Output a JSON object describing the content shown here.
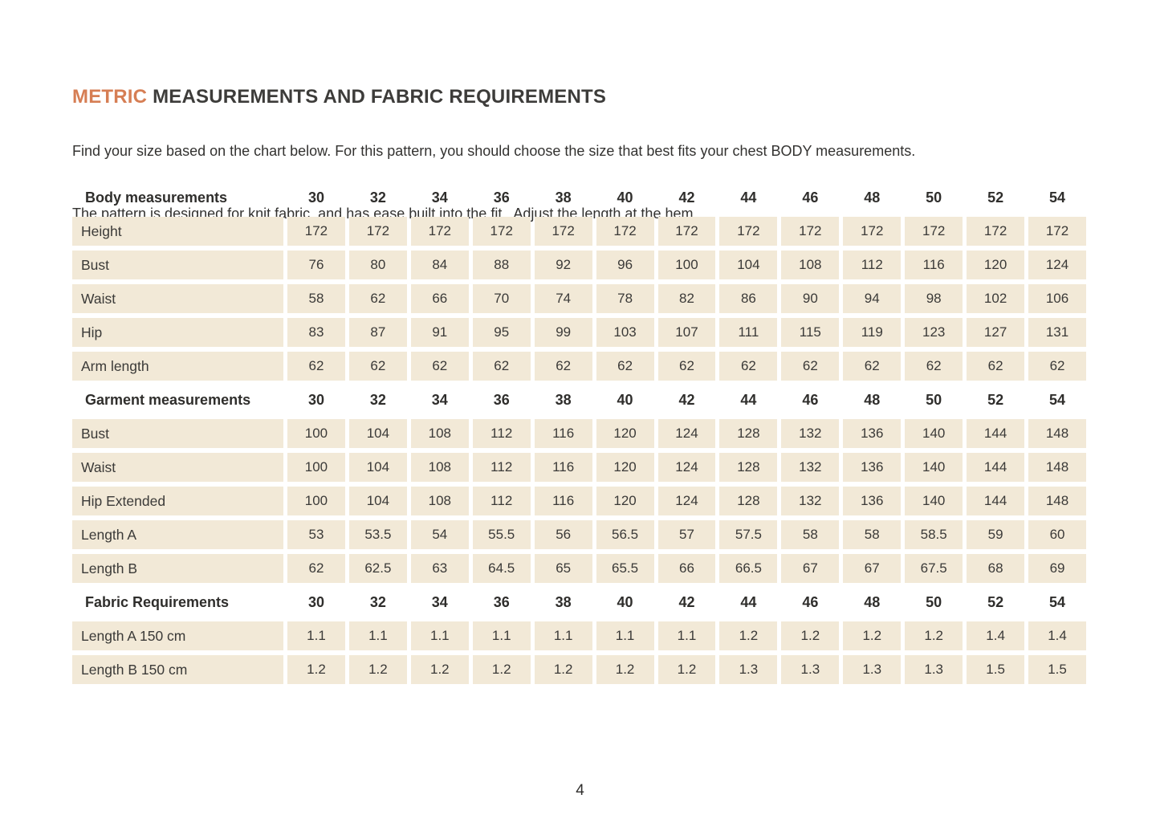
{
  "page": {
    "title_highlight": "METRIC",
    "title_rest": " MEASUREMENTS AND FABRIC REQUIREMENTS",
    "intro_line1": "Find your size based on the chart below. For this pattern, you should choose the size that best fits your chest BODY measurements.",
    "intro_line2": "The pattern is designed for knit fabric, and has ease built into the fit.  Adjust the length at the hem.",
    "page_number": "4"
  },
  "colors": {
    "accent": "#d67e54",
    "cell_background": "#f2e9d7",
    "text": "#3b3a38"
  },
  "table": {
    "sizes": [
      "30",
      "32",
      "34",
      "36",
      "38",
      "40",
      "42",
      "44",
      "46",
      "48",
      "50",
      "52",
      "54"
    ],
    "sections": [
      {
        "header": "Body measurements",
        "rows": [
          {
            "label": "Height",
            "values": [
              "172",
              "172",
              "172",
              "172",
              "172",
              "172",
              "172",
              "172",
              "172",
              "172",
              "172",
              "172",
              "172"
            ]
          },
          {
            "label": "Bust",
            "values": [
              "76",
              "80",
              "84",
              "88",
              "92",
              "96",
              "100",
              "104",
              "108",
              "112",
              "116",
              "120",
              "124"
            ]
          },
          {
            "label": "Waist",
            "values": [
              "58",
              "62",
              "66",
              "70",
              "74",
              "78",
              "82",
              "86",
              "90",
              "94",
              "98",
              "102",
              "106"
            ]
          },
          {
            "label": "Hip",
            "values": [
              "83",
              "87",
              "91",
              "95",
              "99",
              "103",
              "107",
              "111",
              "115",
              "119",
              "123",
              "127",
              "131"
            ]
          },
          {
            "label": "Arm length",
            "values": [
              "62",
              "62",
              "62",
              "62",
              "62",
              "62",
              "62",
              "62",
              "62",
              "62",
              "62",
              "62",
              "62"
            ]
          }
        ]
      },
      {
        "header": "Garment measurements",
        "rows": [
          {
            "label": "Bust",
            "values": [
              "100",
              "104",
              "108",
              "112",
              "116",
              "120",
              "124",
              "128",
              "132",
              "136",
              "140",
              "144",
              "148"
            ]
          },
          {
            "label": "Waist",
            "values": [
              "100",
              "104",
              "108",
              "112",
              "116",
              "120",
              "124",
              "128",
              "132",
              "136",
              "140",
              "144",
              "148"
            ]
          },
          {
            "label": "Hip Extended",
            "values": [
              "100",
              "104",
              "108",
              "112",
              "116",
              "120",
              "124",
              "128",
              "132",
              "136",
              "140",
              "144",
              "148"
            ]
          },
          {
            "label": "Length A",
            "values": [
              "53",
              "53.5",
              "54",
              "55.5",
              "56",
              "56.5",
              "57",
              "57.5",
              "58",
              "58",
              "58.5",
              "59",
              "60"
            ]
          },
          {
            "label": "Length B",
            "values": [
              "62",
              "62.5",
              "63",
              "64.5",
              "65",
              "65.5",
              "66",
              "66.5",
              "67",
              "67",
              "67.5",
              "68",
              "69"
            ]
          }
        ]
      },
      {
        "header": "Fabric Requirements",
        "rows": [
          {
            "label": "Length A 150 cm",
            "values": [
              "1.1",
              "1.1",
              "1.1",
              "1.1",
              "1.1",
              "1.1",
              "1.1",
              "1.2",
              "1.2",
              "1.2",
              "1.2",
              "1.4",
              "1.4"
            ]
          },
          {
            "label": "Length B 150 cm",
            "values": [
              "1.2",
              "1.2",
              "1.2",
              "1.2",
              "1.2",
              "1.2",
              "1.2",
              "1.3",
              "1.3",
              "1.3",
              "1.3",
              "1.5",
              "1.5"
            ]
          }
        ]
      }
    ]
  }
}
